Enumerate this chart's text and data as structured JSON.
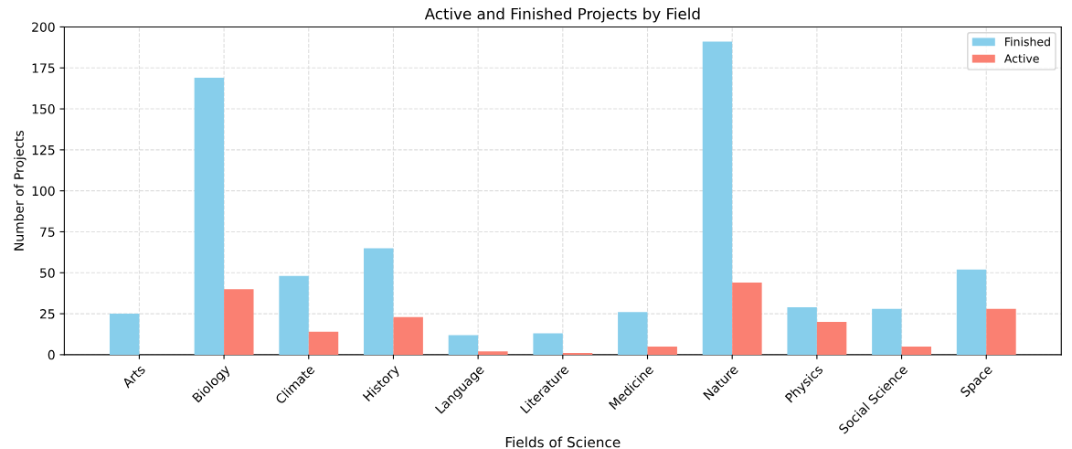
{
  "chart_data": {
    "type": "bar",
    "title": "Active and Finished Projects by Field",
    "xlabel": "Fields of Science",
    "ylabel": "Number of Projects",
    "categories": [
      "Arts",
      "Biology",
      "Climate",
      "History",
      "Language",
      "Literature",
      "Medicine",
      "Nature",
      "Physics",
      "Social Science",
      "Space"
    ],
    "series": [
      {
        "name": "Finished",
        "color": "#87ceeb",
        "values": [
          25,
          169,
          48,
          65,
          12,
          13,
          26,
          191,
          29,
          28,
          52
        ]
      },
      {
        "name": "Active",
        "color": "#fa8072",
        "values": [
          0,
          40,
          14,
          23,
          2,
          1,
          5,
          44,
          20,
          5,
          28
        ]
      }
    ],
    "ylim": [
      0,
      200
    ],
    "yticks": [
      0,
      25,
      50,
      75,
      100,
      125,
      150,
      175,
      200
    ],
    "grid": true,
    "legend": "top right"
  }
}
